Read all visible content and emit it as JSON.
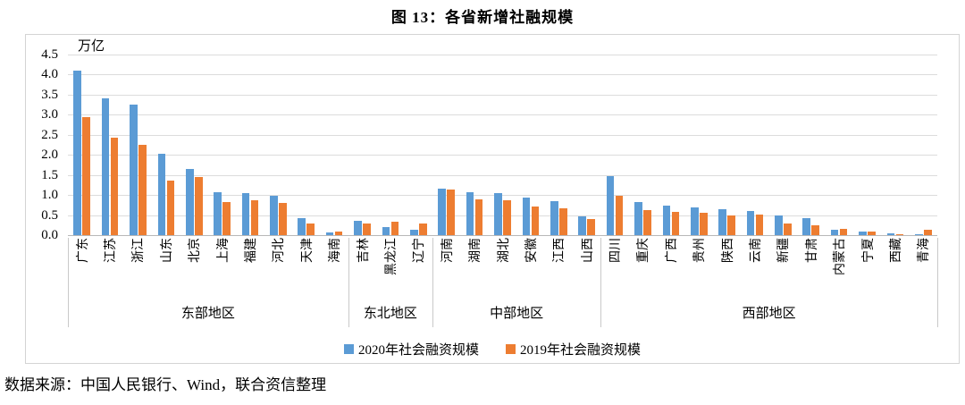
{
  "title": "图 13：各省新增社融规模",
  "source_note": "数据来源：中国人民银行、Wind，联合资信整理",
  "chart_data": {
    "type": "bar",
    "unit_label": "万亿",
    "title": "图 13：各省新增社融规模",
    "categories": [
      "广东",
      "江苏",
      "浙江",
      "山东",
      "北京",
      "上海",
      "福建",
      "河北",
      "天津",
      "海南",
      "吉林",
      "黑龙江",
      "辽宁",
      "河南",
      "湖南",
      "湖北",
      "安徽",
      "江西",
      "山西",
      "四川",
      "重庆",
      "广西",
      "贵州",
      "陕西",
      "云南",
      "新疆",
      "甘肃",
      "内蒙古",
      "宁夏",
      "西藏",
      "青海"
    ],
    "series": [
      {
        "name": "2020年社会融资规模",
        "color": "#5B9BD5",
        "values": [
          4.1,
          3.4,
          3.25,
          2.02,
          1.65,
          1.07,
          1.04,
          0.99,
          0.42,
          0.07,
          0.36,
          0.19,
          0.14,
          1.16,
          1.08,
          1.04,
          0.93,
          0.84,
          0.46,
          1.47,
          0.83,
          0.73,
          0.68,
          0.65,
          0.61,
          0.48,
          0.42,
          0.13,
          0.1,
          0.05,
          0.02
        ]
      },
      {
        "name": "2019年社会融资规模",
        "color": "#ED7D31",
        "values": [
          2.95,
          2.42,
          2.24,
          1.36,
          1.45,
          0.83,
          0.87,
          0.8,
          0.28,
          0.08,
          0.29,
          0.33,
          0.29,
          1.14,
          0.88,
          0.87,
          0.72,
          0.66,
          0.41,
          0.98,
          0.62,
          0.57,
          0.55,
          0.48,
          0.52,
          0.3,
          0.24,
          0.16,
          0.09,
          0.01,
          0.13
        ]
      }
    ],
    "region_groups": [
      {
        "label": "东部地区",
        "count": 10
      },
      {
        "label": "东北地区",
        "count": 3
      },
      {
        "label": "中部地区",
        "count": 6
      },
      {
        "label": "西部地区",
        "count": 12
      }
    ],
    "ylim": [
      0,
      4.5
    ],
    "ytick_step": 0.5,
    "yticks": [
      "4.5",
      "4.0",
      "3.5",
      "3.0",
      "2.5",
      "2.0",
      "1.5",
      "1.0",
      "0.5",
      "0.0"
    ],
    "grid": true,
    "legend_position": "bottom"
  }
}
